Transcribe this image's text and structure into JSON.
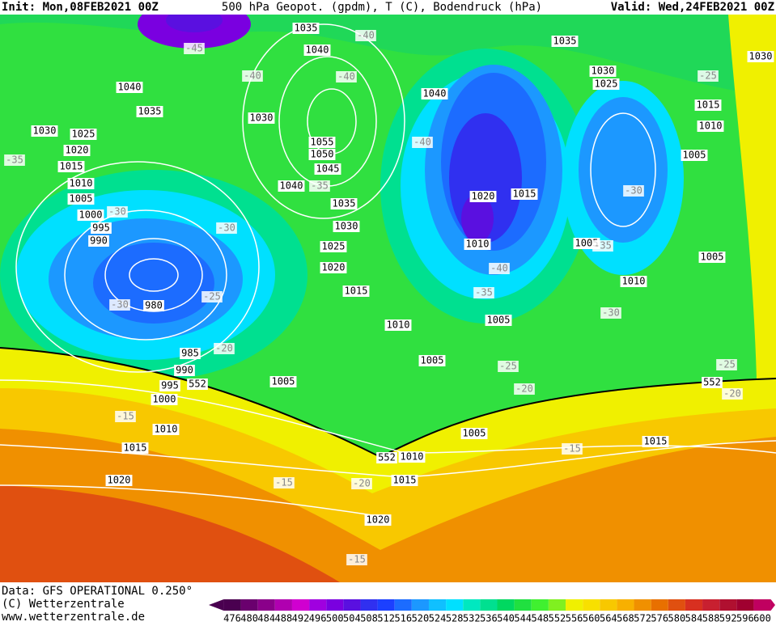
{
  "header": {
    "init": "Init: Mon,08FEB2021 00Z",
    "title": "500 hPa Geopot. (gpdm), T (C), Bodendruck (hPa)",
    "valid": "Valid: Wed,24FEB2021 00Z"
  },
  "footer": {
    "data": "Data: GFS OPERATIONAL 0.250°",
    "copyright": "(C) Wetterzentrale",
    "url": "www.wetterzentrale.de"
  },
  "colorbar": {
    "ticks": [
      476,
      480,
      484,
      488,
      492,
      496,
      500,
      504,
      508,
      512,
      516,
      520,
      524,
      528,
      532,
      536,
      540,
      544,
      548,
      552,
      556,
      560,
      564,
      568,
      572,
      576,
      580,
      584,
      588,
      592,
      596,
      600
    ],
    "colors": [
      "#4a0050",
      "#6a006e",
      "#8a008a",
      "#b000b0",
      "#d000d0",
      "#a000e0",
      "#7a00e0",
      "#5a10e0",
      "#3030f0",
      "#1c40ff",
      "#1c6cff",
      "#1c98ff",
      "#10c0ff",
      "#00e0ff",
      "#00e8c0",
      "#00e090",
      "#00d860",
      "#20e040",
      "#40f030",
      "#80f020",
      "#f0f000",
      "#f8e000",
      "#f8c800",
      "#f8b000",
      "#f09000",
      "#e87000",
      "#e05010",
      "#d83020",
      "#c82030",
      "#b01030",
      "#a00030",
      "#c00060"
    ]
  },
  "map_labels": [
    "1035",
    "1040",
    "-40",
    "-45",
    "-40",
    "-40",
    "1040",
    "1035",
    "1030",
    "1030",
    "1025",
    "1020",
    "1015",
    "1010",
    "1005",
    "1000",
    "-30",
    "995",
    "990",
    "-35",
    "1055",
    "1050",
    "1045",
    "1040",
    "-35",
    "1035",
    "1030",
    "1025",
    "1020",
    "1015",
    "-30",
    "-25",
    "-30",
    "980",
    "985",
    "-20",
    "990",
    "995",
    "552",
    "1000",
    "1005",
    "-15",
    "1010",
    "1015",
    "1020",
    "-15",
    "-20",
    "552",
    "1010",
    "1015",
    "1020",
    "-15",
    "1005",
    "-15",
    "1015",
    "-20",
    "-25",
    "1005",
    "1010",
    "-35",
    "-40",
    "1010",
    "1005",
    "1020",
    "1015",
    "-40",
    "1040",
    "1035",
    "1030",
    "1025",
    "-25",
    "1015",
    "1010",
    "1005",
    "-30",
    "1005",
    "-35",
    "1005",
    "1010",
    "-30",
    "-25",
    "552",
    "-20",
    "1030"
  ]
}
